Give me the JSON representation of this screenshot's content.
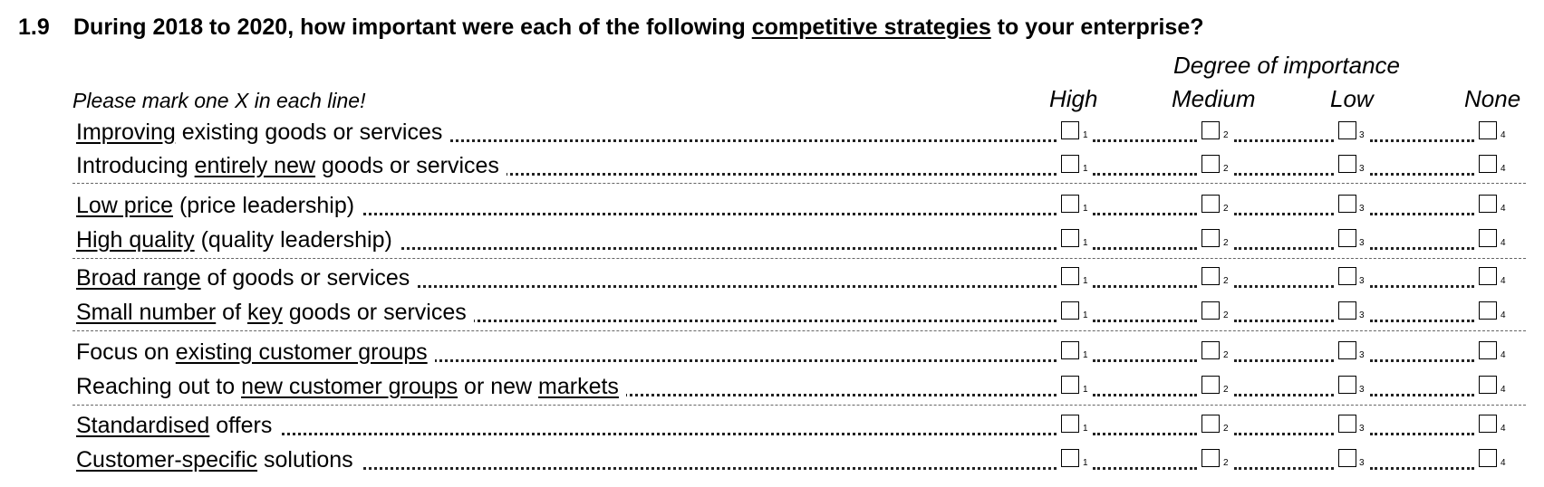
{
  "question": {
    "number": "1.9",
    "text_before": "During 2018 to 2020, how important were each of the following ",
    "text_underlined": "competitive strategies",
    "text_after": " to your enterprise?"
  },
  "instruction": "Please mark one X in each line!",
  "scale": {
    "title": "Degree of importance",
    "columns": [
      {
        "label": "High",
        "code": "1"
      },
      {
        "label": "Medium",
        "code": "2"
      },
      {
        "label": "Low",
        "code": "3"
      },
      {
        "label": "None",
        "code": "4"
      }
    ]
  },
  "items": [
    {
      "segments": [
        {
          "text": "Improving",
          "underline": true
        },
        {
          "text": " existing goods or services",
          "underline": false
        }
      ]
    },
    {
      "segments": [
        {
          "text": "Introducing ",
          "underline": false
        },
        {
          "text": "entirely new",
          "underline": true
        },
        {
          "text": " goods or services",
          "underline": false
        }
      ]
    },
    {
      "segments": [
        {
          "text": "Low price",
          "underline": true
        },
        {
          "text": " (price leadership)",
          "underline": false
        }
      ]
    },
    {
      "segments": [
        {
          "text": "High quality",
          "underline": true
        },
        {
          "text": " (quality leadership)",
          "underline": false
        }
      ]
    },
    {
      "segments": [
        {
          "text": "Broad range",
          "underline": true
        },
        {
          "text": " of goods or services",
          "underline": false
        }
      ]
    },
    {
      "segments": [
        {
          "text": "Small number",
          "underline": true
        },
        {
          "text": " of ",
          "underline": false
        },
        {
          "text": "key",
          "underline": true
        },
        {
          "text": " goods or services",
          "underline": false
        }
      ]
    },
    {
      "segments": [
        {
          "text": "Focus on ",
          "underline": false
        },
        {
          "text": "existing customer groups",
          "underline": true
        }
      ]
    },
    {
      "segments": [
        {
          "text": "Reaching out to ",
          "underline": false
        },
        {
          "text": "new customer groups",
          "underline": true
        },
        {
          "text": " or new ",
          "underline": false
        },
        {
          "text": "markets",
          "underline": true
        }
      ]
    },
    {
      "segments": [
        {
          "text": "Standardised",
          "underline": true
        },
        {
          "text": " offers",
          "underline": false
        }
      ]
    },
    {
      "segments": [
        {
          "text": "Customer-specific",
          "underline": true
        },
        {
          "text": " solutions",
          "underline": false
        }
      ]
    }
  ]
}
